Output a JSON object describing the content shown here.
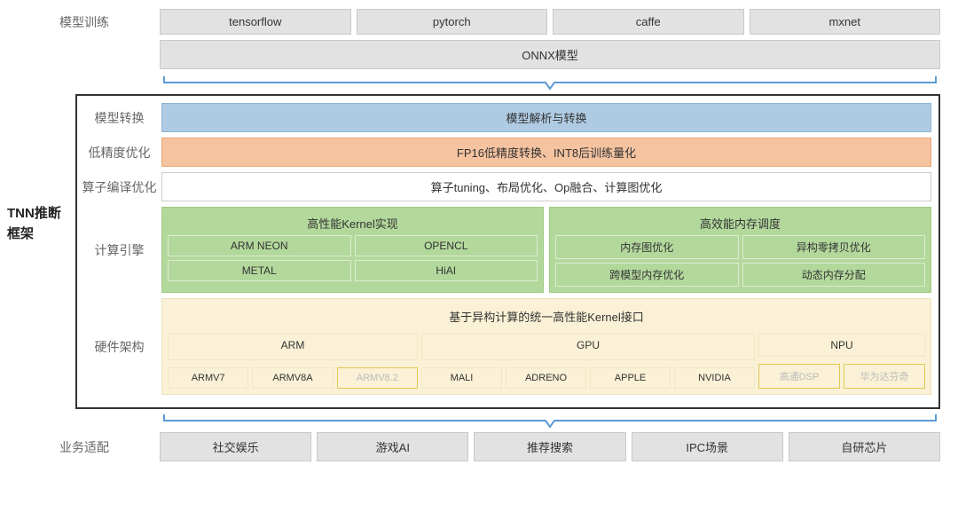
{
  "side_title": "TNN推断框架",
  "training": {
    "label": "模型训练",
    "frameworks": [
      "tensorflow",
      "pytorch",
      "caffe",
      "mxnet"
    ],
    "onnx": "ONNX模型"
  },
  "convert": {
    "label": "模型转换",
    "text": "模型解析与转换",
    "bg": "#afcbe3"
  },
  "lowprec": {
    "label": "低精度优化",
    "text": "FP16低精度转换、INT8后训练量化",
    "bg": "#f5c3a0"
  },
  "opcompile": {
    "label": "算子编译优化",
    "text": "算子tuning、布局优化、Op融合、计算图优化",
    "bg": "#ffffff"
  },
  "engine": {
    "label": "计算引擎",
    "left": {
      "title": "高性能Kernel实现",
      "cells": [
        "ARM NEON",
        "OPENCL",
        "METAL",
        "HiAI"
      ]
    },
    "right": {
      "title": "高效能内存调度",
      "cells": [
        "内存图优化",
        "异构零拷贝优化",
        "跨模型内存优化",
        "动态内存分配"
      ]
    },
    "bg": "#b3d89c"
  },
  "hardware": {
    "label": "硬件架构",
    "interface": "基于异构计算的统一高性能Kernel接口",
    "bg": "#faf1d6",
    "groups": [
      {
        "name": "ARM",
        "flex": 3,
        "chips": [
          {
            "t": "ARMV7",
            "future": false
          },
          {
            "t": "ARMV8A",
            "future": false
          },
          {
            "t": "ARMV8.2",
            "future": true
          }
        ]
      },
      {
        "name": "GPU",
        "flex": 4,
        "chips": [
          {
            "t": "MALI",
            "future": false
          },
          {
            "t": "ADRENO",
            "future": false
          },
          {
            "t": "APPLE",
            "future": false
          },
          {
            "t": "NVIDIA",
            "future": false
          }
        ]
      },
      {
        "name": "NPU",
        "flex": 2,
        "chips": [
          {
            "t": "高通DSP",
            "future": true
          },
          {
            "t": "华为达芬奇",
            "future": true
          }
        ]
      }
    ]
  },
  "business": {
    "label": "业务适配",
    "items": [
      "社交娱乐",
      "游戏AI",
      "推荐搜索",
      "IPC场景",
      "自研芯片"
    ]
  },
  "colors": {
    "bracket": "#5b9bd5",
    "gray_box": "#e2e2e2"
  }
}
